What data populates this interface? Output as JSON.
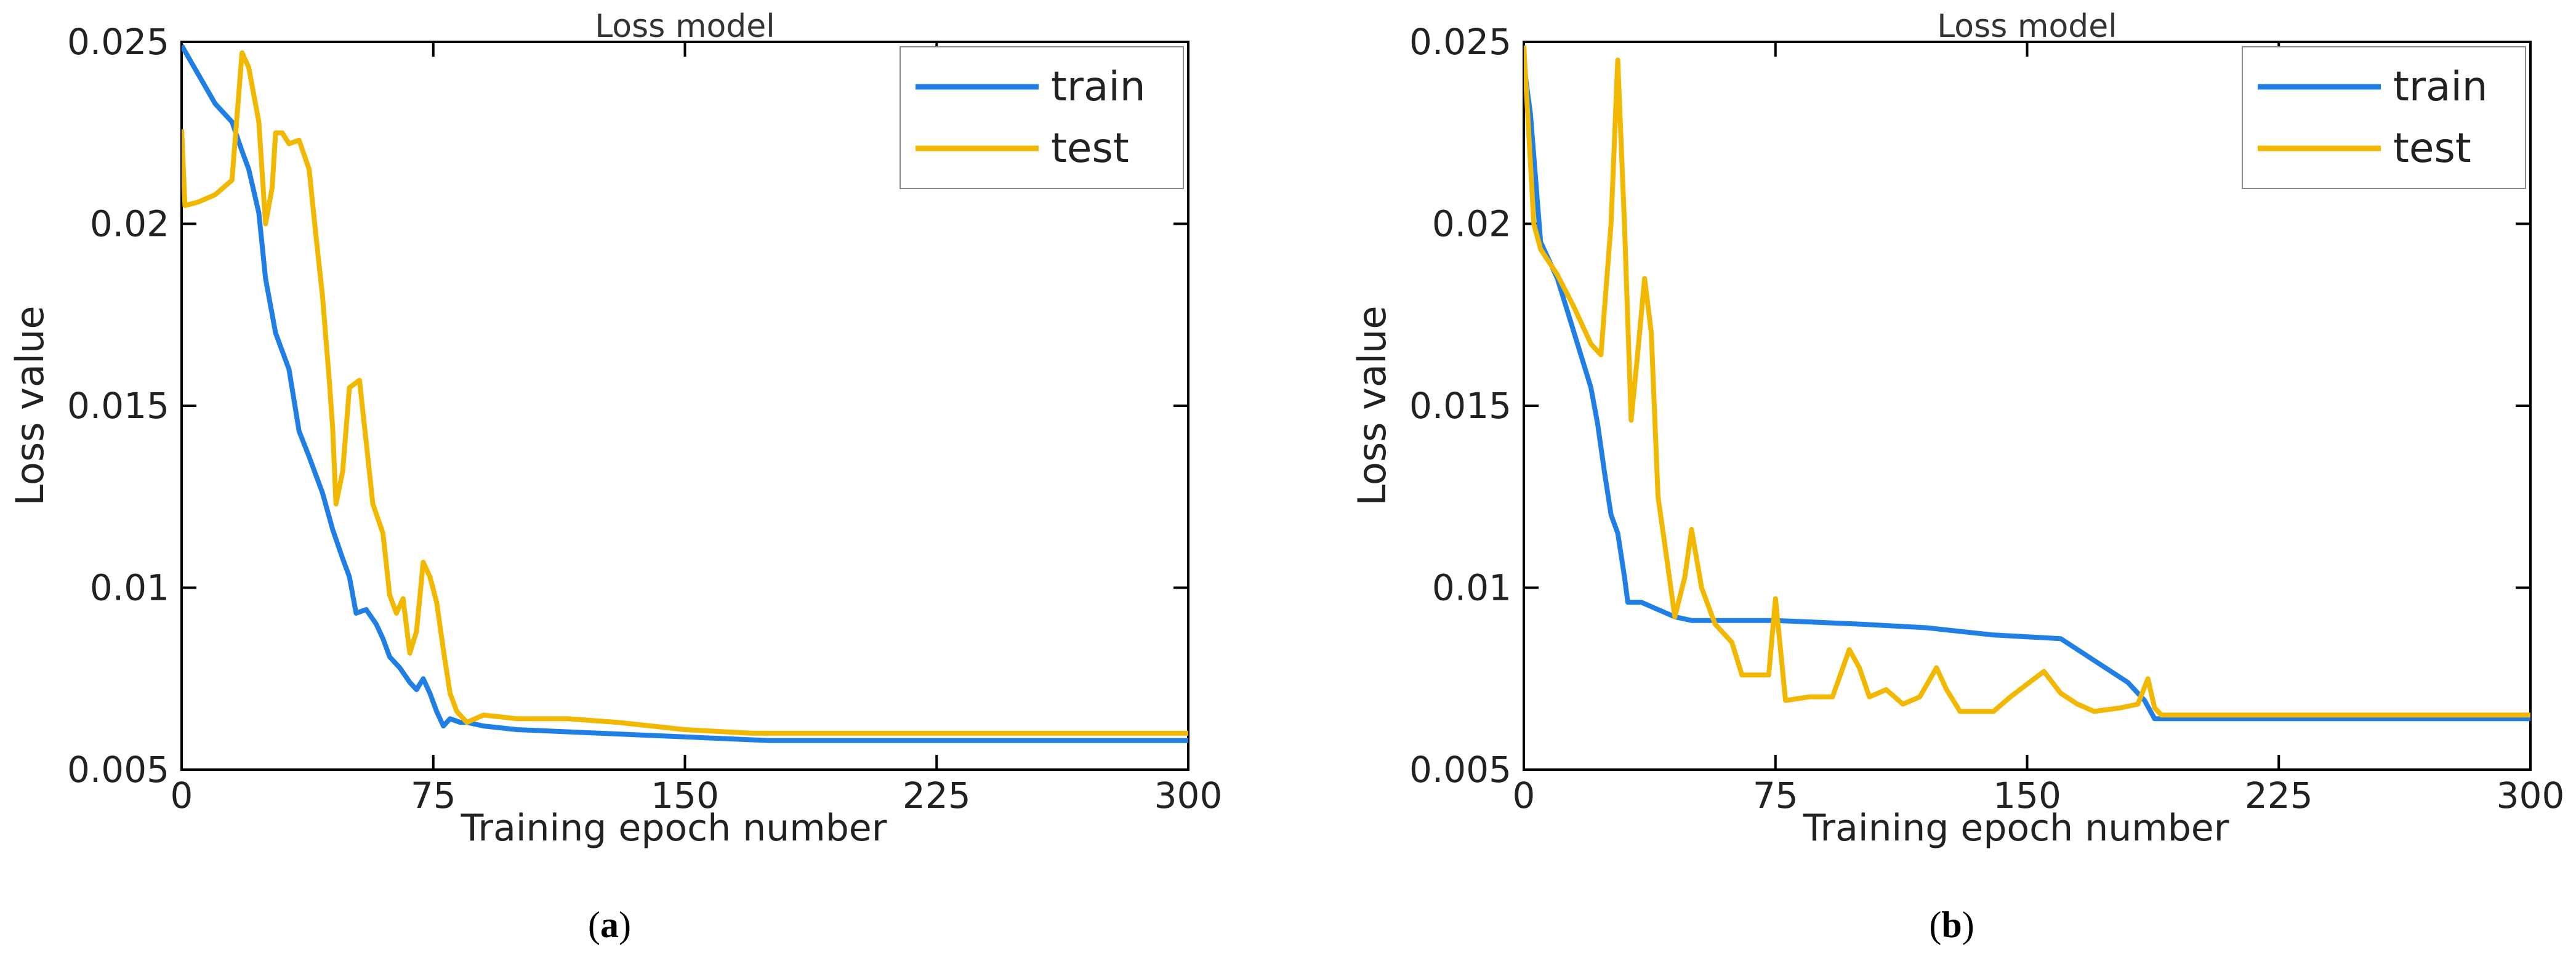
{
  "chart_data": [
    {
      "type": "line",
      "panel_label": "a",
      "title": "Loss model",
      "xlabel": "Training epoch number",
      "ylabel": "Loss value",
      "xlim": [
        0,
        300
      ],
      "ylim": [
        0.005,
        0.025
      ],
      "xticks": [
        "0",
        "75",
        "150",
        "225",
        "300"
      ],
      "yticks": [
        "0.005",
        "0.01",
        "0.015",
        "0.02",
        "0.025"
      ],
      "grid": false,
      "legend_position": "top-right",
      "series": [
        {
          "name": "train",
          "color": "#1f7fe5",
          "points": [
            [
              0,
              0.0249
            ],
            [
              5,
              0.0241
            ],
            [
              10,
              0.0233
            ],
            [
              15,
              0.0228
            ],
            [
              18,
              0.022
            ],
            [
              20,
              0.0215
            ],
            [
              23,
              0.0203
            ],
            [
              25,
              0.0185
            ],
            [
              28,
              0.017
            ],
            [
              32,
              0.016
            ],
            [
              35,
              0.0143
            ],
            [
              38,
              0.0136
            ],
            [
              42,
              0.0126
            ],
            [
              45,
              0.0116
            ],
            [
              48,
              0.0108
            ],
            [
              50,
              0.0103
            ],
            [
              52,
              0.0093
            ],
            [
              55,
              0.0094
            ],
            [
              58,
              0.009
            ],
            [
              60,
              0.0086
            ],
            [
              62,
              0.0081
            ],
            [
              65,
              0.0078
            ],
            [
              68,
              0.0074
            ],
            [
              70,
              0.0072
            ],
            [
              72,
              0.0075
            ],
            [
              74,
              0.0071
            ],
            [
              76,
              0.0066
            ],
            [
              78,
              0.0062
            ],
            [
              80,
              0.0064
            ],
            [
              83,
              0.0063
            ],
            [
              85,
              0.0063
            ],
            [
              90,
              0.0062
            ],
            [
              100,
              0.0061
            ],
            [
              125,
              0.006
            ],
            [
              150,
              0.0059
            ],
            [
              175,
              0.0058
            ],
            [
              225,
              0.0058
            ],
            [
              300,
              0.0058
            ]
          ]
        },
        {
          "name": "test",
          "color": "#f2b800",
          "points": [
            [
              0,
              0.0226
            ],
            [
              1,
              0.0205
            ],
            [
              5,
              0.0206
            ],
            [
              10,
              0.0208
            ],
            [
              15,
              0.0212
            ],
            [
              18,
              0.0247
            ],
            [
              20,
              0.0243
            ],
            [
              23,
              0.0228
            ],
            [
              25,
              0.02
            ],
            [
              27,
              0.021
            ],
            [
              28,
              0.0225
            ],
            [
              30,
              0.0225
            ],
            [
              32,
              0.0222
            ],
            [
              35,
              0.0223
            ],
            [
              38,
              0.0215
            ],
            [
              40,
              0.0197
            ],
            [
              42,
              0.018
            ],
            [
              44,
              0.0157
            ],
            [
              45,
              0.0144
            ],
            [
              46,
              0.0123
            ],
            [
              48,
              0.0132
            ],
            [
              50,
              0.0155
            ],
            [
              53,
              0.0157
            ],
            [
              55,
              0.014
            ],
            [
              57,
              0.0123
            ],
            [
              60,
              0.0115
            ],
            [
              62,
              0.0098
            ],
            [
              64,
              0.0093
            ],
            [
              66,
              0.0097
            ],
            [
              68,
              0.0082
            ],
            [
              70,
              0.0088
            ],
            [
              72,
              0.0107
            ],
            [
              74,
              0.0103
            ],
            [
              76,
              0.0096
            ],
            [
              78,
              0.0083
            ],
            [
              80,
              0.0071
            ],
            [
              82,
              0.0066
            ],
            [
              85,
              0.0063
            ],
            [
              90,
              0.0065
            ],
            [
              100,
              0.0064
            ],
            [
              115,
              0.0064
            ],
            [
              130,
              0.0063
            ],
            [
              150,
              0.0061
            ],
            [
              170,
              0.006
            ],
            [
              225,
              0.006
            ],
            [
              300,
              0.006
            ]
          ]
        }
      ]
    },
    {
      "type": "line",
      "panel_label": "b",
      "title": "Loss model",
      "xlabel": "Training epoch number",
      "ylabel": "Loss value",
      "xlim": [
        0,
        300
      ],
      "ylim": [
        0.005,
        0.025
      ],
      "xticks": [
        "0",
        "75",
        "150",
        "225",
        "300"
      ],
      "yticks": [
        "0.005",
        "0.01",
        "0.015",
        "0.02",
        "0.025"
      ],
      "grid": false,
      "legend_position": "top-right",
      "series": [
        {
          "name": "train",
          "color": "#1f7fe5",
          "points": [
            [
              0,
              0.0244
            ],
            [
              2,
              0.023
            ],
            [
              5,
              0.0195
            ],
            [
              10,
              0.0185
            ],
            [
              15,
              0.017
            ],
            [
              20,
              0.0155
            ],
            [
              22,
              0.0145
            ],
            [
              24,
              0.0132
            ],
            [
              26,
              0.012
            ],
            [
              28,
              0.0115
            ],
            [
              30,
              0.0103
            ],
            [
              31,
              0.0096
            ],
            [
              35,
              0.0096
            ],
            [
              40,
              0.0094
            ],
            [
              45,
              0.0092
            ],
            [
              50,
              0.0091
            ],
            [
              75,
              0.0091
            ],
            [
              100,
              0.009
            ],
            [
              120,
              0.0089
            ],
            [
              140,
              0.0087
            ],
            [
              160,
              0.0086
            ],
            [
              170,
              0.008
            ],
            [
              180,
              0.0074
            ],
            [
              185,
              0.0069
            ],
            [
              188,
              0.0064
            ],
            [
              225,
              0.0064
            ],
            [
              300,
              0.0064
            ]
          ]
        },
        {
          "name": "test",
          "color": "#f2b800",
          "points": [
            [
              0,
              0.0249
            ],
            [
              3,
              0.02
            ],
            [
              5,
              0.0193
            ],
            [
              10,
              0.0186
            ],
            [
              15,
              0.0177
            ],
            [
              20,
              0.0167
            ],
            [
              23,
              0.0164
            ],
            [
              26,
              0.02
            ],
            [
              28,
              0.0245
            ],
            [
              30,
              0.02
            ],
            [
              32,
              0.0146
            ],
            [
              34,
              0.0165
            ],
            [
              36,
              0.0185
            ],
            [
              38,
              0.017
            ],
            [
              40,
              0.0125
            ],
            [
              42,
              0.0112
            ],
            [
              45,
              0.0092
            ],
            [
              48,
              0.0103
            ],
            [
              50,
              0.0116
            ],
            [
              53,
              0.01
            ],
            [
              57,
              0.009
            ],
            [
              62,
              0.0085
            ],
            [
              65,
              0.0076
            ],
            [
              70,
              0.0076
            ],
            [
              73,
              0.0076
            ],
            [
              75,
              0.0097
            ],
            [
              78,
              0.0069
            ],
            [
              85,
              0.007
            ],
            [
              92,
              0.007
            ],
            [
              97,
              0.0083
            ],
            [
              100,
              0.0078
            ],
            [
              103,
              0.007
            ],
            [
              108,
              0.0072
            ],
            [
              113,
              0.0068
            ],
            [
              118,
              0.007
            ],
            [
              123,
              0.0078
            ],
            [
              126,
              0.0072
            ],
            [
              130,
              0.0066
            ],
            [
              140,
              0.0066
            ],
            [
              145,
              0.007
            ],
            [
              155,
              0.0077
            ],
            [
              160,
              0.0071
            ],
            [
              165,
              0.0068
            ],
            [
              170,
              0.0066
            ],
            [
              178,
              0.0067
            ],
            [
              183,
              0.0068
            ],
            [
              186,
              0.0075
            ],
            [
              188,
              0.0067
            ],
            [
              190,
              0.0065
            ],
            [
              225,
              0.0065
            ],
            [
              300,
              0.0065
            ]
          ]
        }
      ]
    }
  ]
}
